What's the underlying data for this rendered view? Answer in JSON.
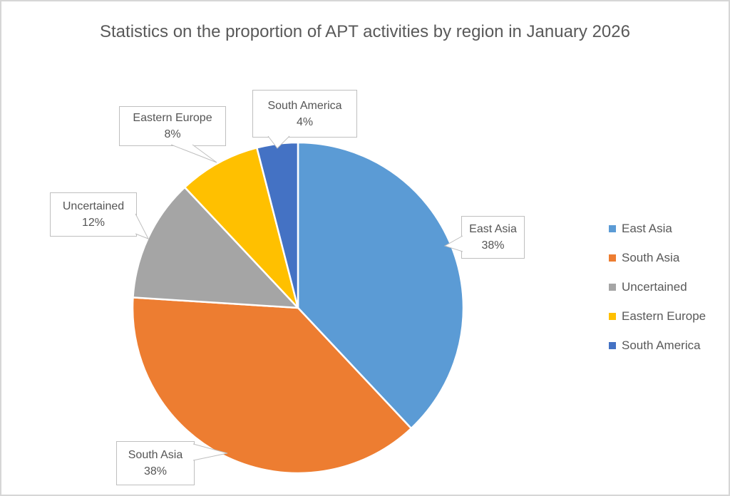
{
  "chart_data": {
    "type": "pie",
    "title": "Statistics on the proportion of APT activities by region in January 2026",
    "categories": [
      "East Asia",
      "South Asia",
      "Uncertained",
      "Eastern Europe",
      "South America"
    ],
    "values": [
      38,
      38,
      12,
      8,
      4
    ],
    "unit": "%",
    "colors": [
      "#5B9BD5",
      "#ED7D31",
      "#A5A5A5",
      "#FFC000",
      "#4472C4"
    ],
    "start_angle_deg": 0,
    "direction": "clockwise",
    "slice_border_color": "#FFFFFF",
    "legend_position": "right",
    "data_labels": [
      {
        "category": "East Asia",
        "percent": "38%"
      },
      {
        "category": "South Asia",
        "percent": "38%"
      },
      {
        "category": "Uncertained",
        "percent": "12%"
      },
      {
        "category": "Eastern Europe",
        "percent": "8%"
      },
      {
        "category": "South America",
        "percent": "4%"
      }
    ]
  },
  "legend": {
    "items": [
      {
        "label": "East Asia",
        "color": "#5B9BD5"
      },
      {
        "label": "South Asia",
        "color": "#ED7D31"
      },
      {
        "label": "Uncertained",
        "color": "#A5A5A5"
      },
      {
        "label": "Eastern Europe",
        "color": "#FFC000"
      },
      {
        "label": "South America",
        "color": "#4472C4"
      }
    ]
  }
}
